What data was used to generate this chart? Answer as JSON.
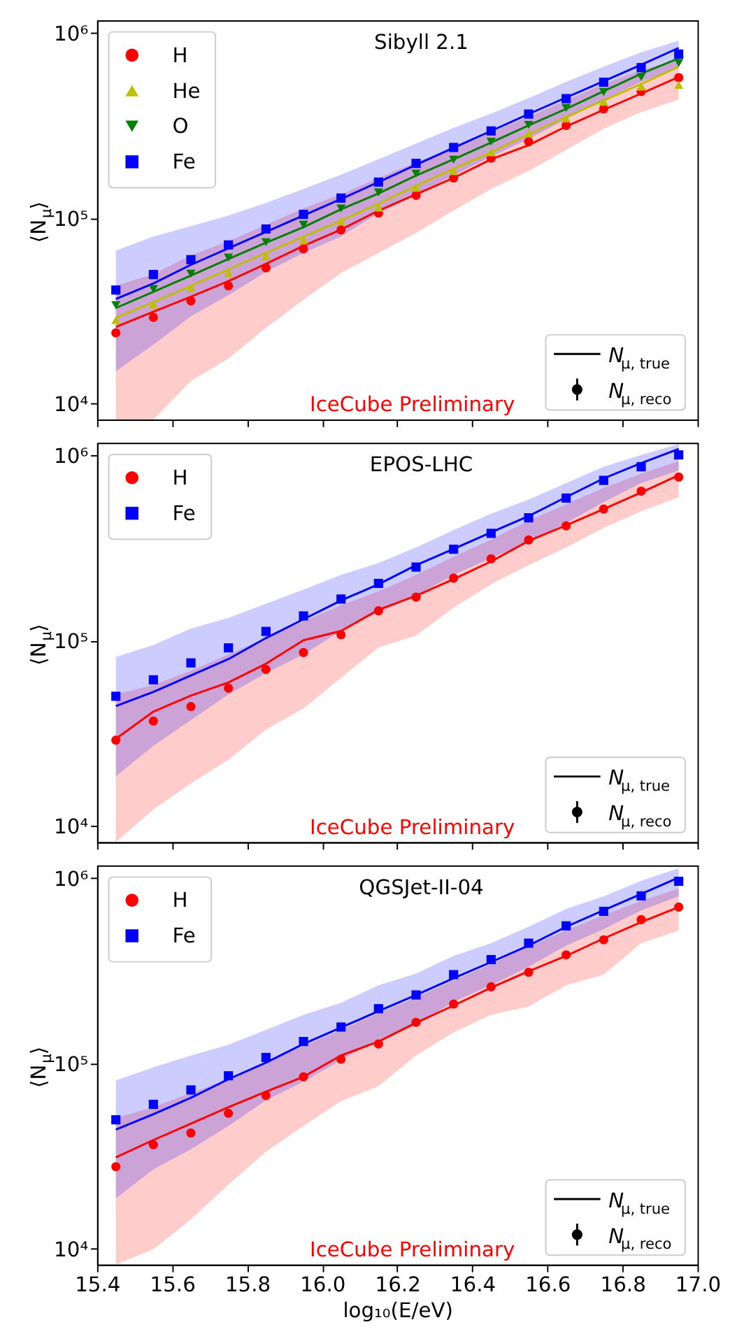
{
  "chart_data": [
    {
      "type": "scatter",
      "title": "Sibyll 2.1",
      "ylabel": "⟨N$_{μ}$⟩",
      "log": true,
      "grid": false,
      "legend": "top left",
      "tick_labels": "y",
      "x": [
        15.45,
        15.55,
        15.65,
        15.75,
        15.85,
        15.95,
        16.05,
        16.15,
        16.25,
        16.35,
        16.45,
        16.55,
        16.65,
        16.75,
        16.85,
        16.95
      ],
      "xlim": [
        15.4,
        17.0
      ],
      "xticks": [
        15.4,
        15.6,
        15.8,
        16.0,
        16.2,
        16.4,
        16.6,
        16.8,
        17.0
      ],
      "ylim": [
        8200,
        1170000
      ],
      "yticks": [
        {
          "value": 10000,
          "label": "10⁴"
        },
        {
          "value": 100000,
          "label": "10⁵"
        },
        {
          "value": 1000000,
          "label": "10⁶"
        }
      ],
      "annotations": [
        "IceCube Preliminary",
        "N$_{μ, true}$",
        "N$_{μ, reco}$"
      ],
      "series": [
        {
          "type": "line",
          "color": "#ff0000",
          "values": [
            25900,
            31300,
            37700,
            45800,
            56800,
            71000,
            86900,
            109900,
            134600,
            165000,
            208000,
            248000,
            313000,
            385000,
            471000,
            578000
          ],
          "lower": [
            8200,
            8200,
            13240,
            17500,
            25600,
            36300,
            50600,
            65000,
            83500,
            109900,
            144000,
            180000,
            234000,
            304000,
            374000,
            437000
          ],
          "upper": [
            43200,
            50000,
            63000,
            75200,
            92200,
            113000,
            134600,
            165000,
            200000,
            241000,
            291000,
            352000,
            432000,
            530000,
            631000,
            722000
          ]
        },
        {
          "type": "line",
          "color": "#0000ff",
          "values": [
            36700,
            44500,
            56100,
            68900,
            84500,
            103500,
            127000,
            156700,
            194500,
            240000,
            296000,
            365000,
            448000,
            549000,
            673000,
            830000
          ],
          "lower": [
            14960,
            20800,
            29600,
            38400,
            51400,
            65000,
            79700,
            106700,
            134600,
            170000,
            215000,
            268000,
            342000,
            437000,
            545000,
            650000
          ],
          "upper": [
            66900,
            79700,
            90600,
            103500,
            121000,
            144000,
            172000,
            208000,
            253000,
            308000,
            367000,
            445000,
            545000,
            657000,
            787000,
            910000
          ]
        },
        {
          "type": "line",
          "color": "#bfbf00",
          "values": [
            29100,
            35200,
            43200,
            53000,
            65000,
            79700,
            97100,
            119800,
            149600,
            185000,
            227000,
            284000,
            352000,
            432000,
            530000,
            657000
          ]
        },
        {
          "type": "line",
          "color": "#008000",
          "values": [
            32800,
            40100,
            49100,
            60300,
            73800,
            89500,
            111700,
            136200,
            170000,
            208000,
            256000,
            317000,
            389000,
            485000,
            602000,
            730000
          ]
        },
        {
          "type": "scatter",
          "name": "H",
          "color": "#ff0000",
          "marker": "circle",
          "values": [
            24100,
            29200,
            35800,
            43200,
            54000,
            68400,
            86500,
            106700,
            133000,
            165000,
            211000,
            259000,
            317000,
            389000,
            483000,
            574000
          ]
        },
        {
          "type": "scatter",
          "name": "He",
          "color": "#bfbf00",
          "marker": "triangle",
          "values": [
            28200,
            34200,
            42000,
            50800,
            62400,
            76000,
            96600,
            114300,
            146000,
            180000,
            227000,
            287000,
            346000,
            425000,
            514000,
            524000
          ]
        },
        {
          "type": "scatter",
          "name": "O",
          "color": "#008000",
          "marker": "triangle-down",
          "values": [
            34000,
            41500,
            50200,
            61300,
            74300,
            92200,
            113000,
            137800,
            174000,
            207000,
            259000,
            319000,
            394000,
            480000,
            578000,
            689000
          ]
        },
        {
          "type": "scatter",
          "name": "Fe",
          "color": "#0000ff",
          "marker": "square",
          "values": [
            41000,
            49700,
            59800,
            71800,
            87500,
            105000,
            128500,
            156700,
            197700,
            241000,
            296000,
            365000,
            442000,
            542000,
            650000,
            769000
          ]
        }
      ]
    },
    {
      "type": "scatter",
      "title": "EPOS-LHC",
      "ylabel": "⟨N$_{μ}$⟩",
      "log": true,
      "grid": false,
      "legend": "top left",
      "tick_labels": "y",
      "x": [
        15.45,
        15.55,
        15.65,
        15.75,
        15.85,
        15.95,
        16.05,
        16.15,
        16.25,
        16.35,
        16.45,
        16.55,
        16.65,
        16.75,
        16.85,
        16.95
      ],
      "xlim": [
        15.4,
        17.0
      ],
      "xticks": [
        15.4,
        15.6,
        15.8,
        16.0,
        16.2,
        16.4,
        16.6,
        16.8,
        17.0
      ],
      "ylim": [
        8200,
        1170000
      ],
      "yticks": [
        {
          "value": 10000,
          "label": "10⁴"
        },
        {
          "value": 100000,
          "label": "10⁵"
        },
        {
          "value": 1000000,
          "label": "10⁶"
        }
      ],
      "annotations": [
        "IceCube Preliminary",
        "N$_{μ, true}$",
        "N$_{μ, reco}$"
      ],
      "series": [
        {
          "type": "line",
          "color": "#ff0000",
          "values": [
            29600,
            41500,
            50600,
            59600,
            75200,
            100700,
            113000,
            147000,
            175000,
            215000,
            268000,
            346000,
            420000,
            514000,
            631000,
            783000
          ],
          "lower": [
            8200,
            12300,
            17000,
            22800,
            33200,
            43200,
            63100,
            92200,
            106700,
            151000,
            202000,
            256000,
            319000,
            407000,
            500000,
            596000
          ],
          "upper": [
            51400,
            57800,
            68900,
            84500,
            103500,
            127000,
            155600,
            185000,
            227000,
            284000,
            352000,
            445000,
            545000,
            669000,
            797000,
            933000
          ]
        },
        {
          "type": "line",
          "color": "#0000ff",
          "values": [
            44500,
            53000,
            65000,
            79700,
            103500,
            130600,
            165000,
            202000,
            256000,
            313000,
            385000,
            471000,
            596000,
            752000,
            910000,
            1084000
          ],
          "lower": [
            18550,
            27100,
            37300,
            51400,
            66900,
            84500,
            113000,
            142600,
            175000,
            227000,
            279000,
            342000,
            432000,
            561000,
            709000,
            830000
          ],
          "upper": [
            82000,
            94900,
            116400,
            133000,
            158500,
            189000,
            227000,
            263000,
            319000,
            396000,
            485000,
            578000,
            709000,
            869000,
            1007000,
            1150000
          ]
        },
        {
          "type": "scatter",
          "name": "H",
          "color": "#ff0000",
          "marker": "circle",
          "values": [
            29100,
            36900,
            44200,
            55500,
            70100,
            86500,
            107900,
            145200,
            172000,
            218000,
            277000,
            350000,
            417000,
            514000,
            642000,
            765000
          ]
        },
        {
          "type": "scatter",
          "name": "Fe",
          "color": "#0000ff",
          "marker": "square",
          "values": [
            50200,
            61600,
            76000,
            91600,
            112400,
            136200,
            168000,
            204000,
            250000,
            312000,
            380000,
            461000,
            589000,
            734000,
            869000,
            1007000
          ]
        }
      ]
    },
    {
      "type": "scatter",
      "title": "QGSJet-II-04",
      "xlabel": "log₁₀(E/eV)",
      "ylabel": "⟨N$_{μ}$⟩",
      "log": true,
      "grid": false,
      "legend": "top left",
      "x": [
        15.45,
        15.55,
        15.65,
        15.75,
        15.85,
        15.95,
        16.05,
        16.15,
        16.25,
        16.35,
        16.45,
        16.55,
        16.65,
        16.75,
        16.85,
        16.95
      ],
      "xlim": [
        15.4,
        17.0
      ],
      "xticks": [
        15.4,
        15.6,
        15.8,
        {
          "value": 16.0,
          "label": "16.0"
        },
        16.2,
        16.4,
        16.6,
        16.8,
        {
          "value": 17.0,
          "label": "17.0"
        }
      ],
      "ylim": [
        8200,
        1170000
      ],
      "yticks": [
        {
          "value": 10000,
          "label": "10⁴"
        },
        {
          "value": 100000,
          "label": "10⁵"
        },
        {
          "value": 1000000,
          "label": "10⁶"
        }
      ],
      "annotations": [
        "IceCube Preliminary",
        "N$_{μ, true}$",
        "N$_{μ, reco}$"
      ],
      "series": [
        {
          "type": "line",
          "color": "#ff0000",
          "values": [
            31100,
            38600,
            47300,
            58000,
            70300,
            84700,
            110200,
            131200,
            165500,
            205000,
            256000,
            314000,
            380000,
            472000,
            578000,
            697000
          ],
          "lower": [
            8200,
            9930,
            14400,
            22200,
            33400,
            45900,
            62500,
            75400,
            110200,
            147200,
            182700,
            203000,
            263600,
            301000,
            445000,
            521000
          ],
          "upper": [
            50700,
            58000,
            69100,
            82200,
            100900,
            123600,
            151700,
            185800,
            227000,
            279000,
            343000,
            428000,
            521000,
            631000,
            752000,
            880000
          ]
        },
        {
          "type": "line",
          "color": "#0000ff",
          "values": [
            43900,
            53200,
            65200,
            82200,
            100900,
            127300,
            156000,
            191400,
            234000,
            288000,
            352000,
            432000,
            546000,
            670000,
            820000,
            1006000
          ],
          "lower": [
            18700,
            26800,
            34400,
            45900,
            63200,
            79800,
            103800,
            134900,
            160700,
            215000,
            263600,
            332000,
            432000,
            530000,
            670000,
            797000
          ],
          "upper": [
            80900,
            95200,
            110200,
            126000,
            151700,
            182700,
            212300,
            263600,
            305000,
            380000,
            445000,
            546000,
            681000,
            797000,
            966000,
            1130000
          ]
        },
        {
          "type": "scatter",
          "name": "H",
          "color": "#ff0000",
          "marker": "circle",
          "values": [
            27700,
            36400,
            42100,
            53800,
            67100,
            84700,
            105300,
            127300,
            166500,
            209000,
            259000,
            310000,
            385000,
            464000,
            596000,
            697000
          ]
        },
        {
          "type": "scatter",
          "name": "Fe",
          "color": "#0000ff",
          "marker": "square",
          "values": [
            49600,
            60100,
            71900,
            85700,
            107600,
            131200,
            157000,
            197200,
            234000,
            301000,
            363000,
            445000,
            552000,
            661000,
            801000,
            960000
          ]
        }
      ]
    }
  ]
}
